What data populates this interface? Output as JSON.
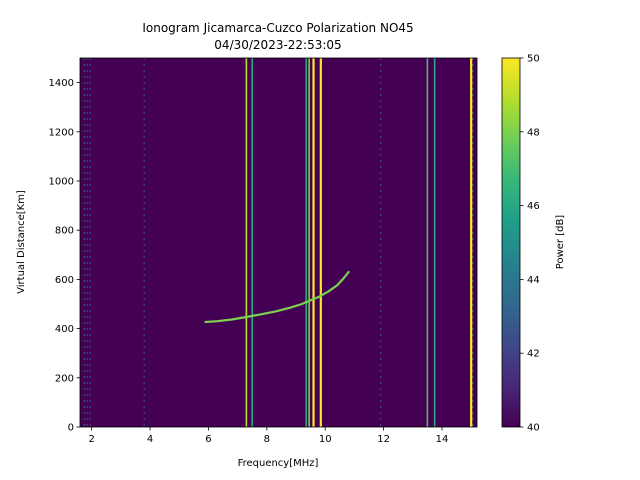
{
  "chart_data": {
    "type": "heatmap",
    "title": "Ionogram Jicamarca-Cuzco Polarization NO45",
    "subtitle": "04/30/2023-22:53:05",
    "xlabel": "Frequency[MHz]",
    "ylabel": "Virtual Distance[Km]",
    "xlim": [
      1.6,
      15.2
    ],
    "ylim": [
      0,
      1500
    ],
    "x_ticks": [
      2,
      4,
      6,
      8,
      10,
      12,
      14
    ],
    "y_ticks": [
      0,
      200,
      400,
      600,
      800,
      1000,
      1200,
      1400
    ],
    "colorbar": {
      "label": "Power [dB]",
      "range": [
        40,
        50
      ],
      "ticks": [
        40,
        42,
        44,
        46,
        48,
        50
      ],
      "colormap": "viridis"
    },
    "background_power_db": 40,
    "vertical_lines": [
      {
        "freq_mhz": 7.3,
        "power_db": 49
      },
      {
        "freq_mhz": 7.5,
        "power_db": 46
      },
      {
        "freq_mhz": 9.35,
        "power_db": 46
      },
      {
        "freq_mhz": 9.45,
        "power_db": 48
      },
      {
        "freq_mhz": 9.6,
        "power_db": 50
      },
      {
        "freq_mhz": 9.85,
        "power_db": 50
      },
      {
        "freq_mhz": 13.5,
        "power_db": 47
      },
      {
        "freq_mhz": 13.75,
        "power_db": 46
      },
      {
        "freq_mhz": 15.0,
        "power_db": 50
      }
    ],
    "noise_columns": [
      {
        "freq_mhz": 1.75,
        "power_db": 43
      },
      {
        "freq_mhz": 1.85,
        "power_db": 42
      },
      {
        "freq_mhz": 1.95,
        "power_db": 42
      },
      {
        "freq_mhz": 3.8,
        "power_db": 42
      },
      {
        "freq_mhz": 11.9,
        "power_db": 42
      },
      {
        "freq_mhz": 15.05,
        "power_db": 44
      }
    ],
    "trace": {
      "name": "",
      "freq_mhz": [
        5.9,
        6.3,
        6.8,
        7.3,
        7.8,
        8.3,
        8.8,
        9.2,
        9.5,
        9.8,
        10.1,
        10.4,
        10.6,
        10.8
      ],
      "distance_km": [
        427,
        430,
        437,
        447,
        458,
        470,
        485,
        500,
        515,
        530,
        550,
        575,
        600,
        630
      ],
      "power_db": 48
    }
  },
  "colors": {
    "plot_background": "#440154",
    "colormap_stops": [
      "#440154",
      "#482878",
      "#3e4989",
      "#31688e",
      "#26828e",
      "#1f9e89",
      "#35b779",
      "#6ece58",
      "#b5de2b",
      "#fde725"
    ]
  }
}
